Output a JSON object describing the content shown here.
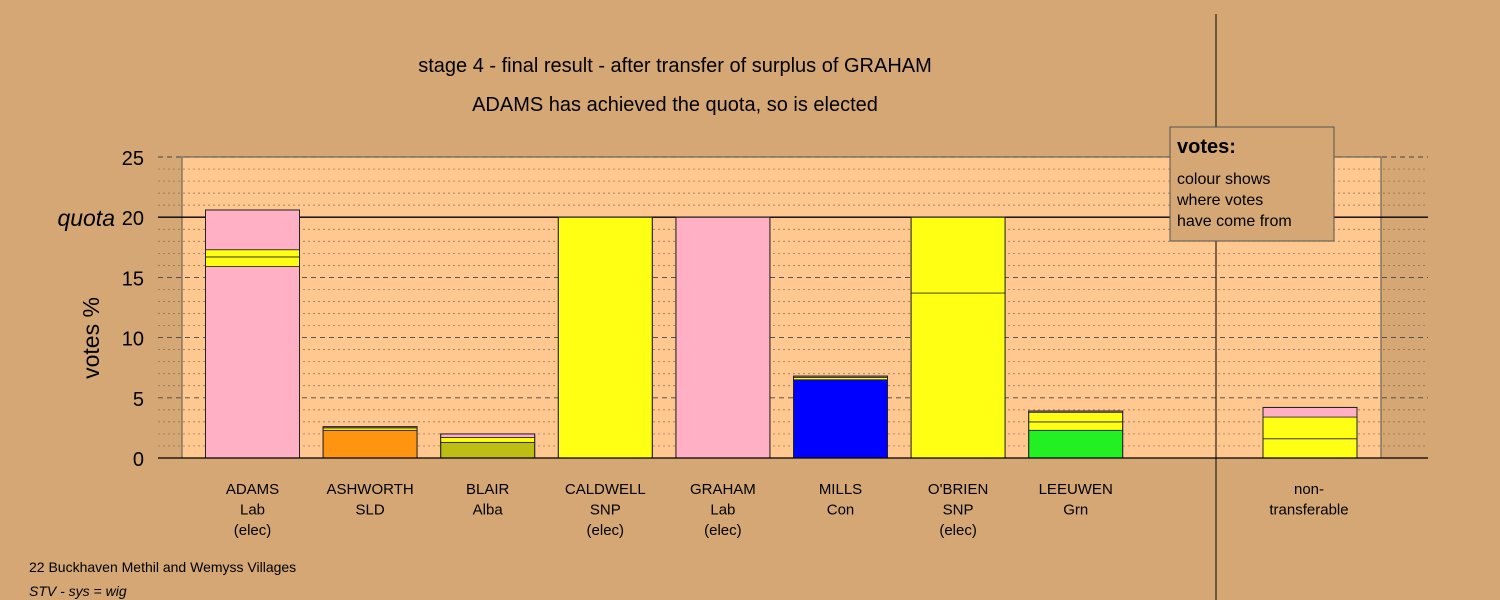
{
  "chart_data": {
    "type": "bar",
    "stacked": true,
    "title": "stage 4 - final result - after transfer of surplus of GRAHAM",
    "subtitle": "ADAMS has achieved the quota, so is elected",
    "ylabel": "votes %",
    "ylim": [
      0,
      25
    ],
    "yticks": [
      "0",
      "5",
      "10",
      "15",
      "20",
      "25"
    ],
    "quota": {
      "label": "quota",
      "value": 20
    },
    "grid": true,
    "candidates": [
      {
        "name": "ADAMS",
        "party": "Lab",
        "note": "(elec)",
        "segments": [
          {
            "value": 15.9,
            "color": "#ffb0c4"
          },
          {
            "value": 0.8,
            "color": "#ffff14"
          },
          {
            "value": 0.6,
            "color": "#ffff14"
          },
          {
            "value": 3.3,
            "color": "#ffb0c4"
          }
        ]
      },
      {
        "name": "ASHWORTH",
        "party": "SLD",
        "note": "",
        "segments": [
          {
            "value": 2.3,
            "color": "#ff9410"
          },
          {
            "value": 0.2,
            "color": "#ffff14"
          },
          {
            "value": 0.1,
            "color": "#ffb0c4"
          }
        ]
      },
      {
        "name": "BLAIR",
        "party": "Alba",
        "note": "",
        "segments": [
          {
            "value": 1.3,
            "color": "#bdbd14"
          },
          {
            "value": 0.4,
            "color": "#ffff14"
          },
          {
            "value": 0.3,
            "color": "#ffb0c4"
          }
        ]
      },
      {
        "name": "CALDWELL",
        "party": "SNP",
        "note": "(elec)",
        "segments": [
          {
            "value": 20,
            "color": "#ffff14"
          }
        ]
      },
      {
        "name": "GRAHAM",
        "party": "Lab",
        "note": "(elec)",
        "segments": [
          {
            "value": 20,
            "color": "#ffb0c4"
          }
        ]
      },
      {
        "name": "MILLS",
        "party": "Con",
        "note": "",
        "segments": [
          {
            "value": 6.5,
            "color": "#0000ff"
          },
          {
            "value": 0.2,
            "color": "#ffff14"
          },
          {
            "value": 0.1,
            "color": "#ffb0c4"
          }
        ]
      },
      {
        "name": "O'BRIEN",
        "party": "SNP",
        "note": "(elec)",
        "segments": [
          {
            "value": 13.7,
            "color": "#ffff14"
          },
          {
            "value": 6.3,
            "color": "#ffff14"
          }
        ]
      },
      {
        "name": "LEEUWEN",
        "party": "Grn",
        "note": "",
        "segments": [
          {
            "value": 2.3,
            "color": "#22f022"
          },
          {
            "value": 0.7,
            "color": "#ffff14"
          },
          {
            "value": 0.8,
            "color": "#ffff14"
          },
          {
            "value": 0.1,
            "color": "#ffb0c4"
          }
        ]
      }
    ],
    "nontransferable": {
      "label_line1": "non-",
      "label_line2": "transferable",
      "segments": [
        {
          "value": 1.6,
          "color": "#ffff14"
        },
        {
          "value": 1.8,
          "color": "#ffff14"
        },
        {
          "value": 0.8,
          "color": "#ffb0c4"
        }
      ]
    },
    "legend": {
      "title": "votes:",
      "lines": [
        "colour shows",
        "where votes",
        "have come from"
      ],
      "placement": "top-right"
    }
  },
  "footer": {
    "ward": "22 Buckhaven Methil and Wemyss Villages",
    "system": "STV - sys = wig"
  },
  "colors": {
    "background": "#d4a774",
    "plot_area": "#ffc890"
  }
}
